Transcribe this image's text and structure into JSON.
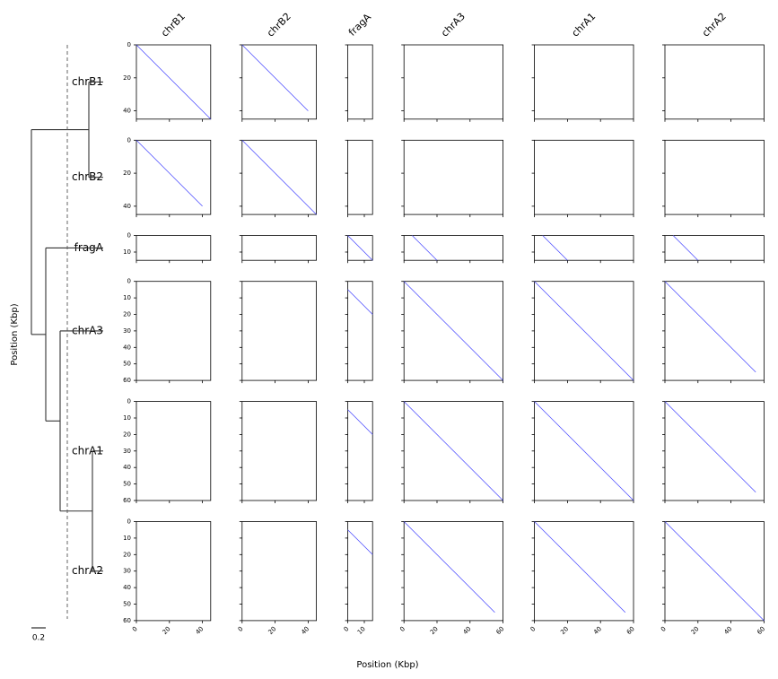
{
  "chart_data": {
    "type": "dotplot",
    "xlabel": "Position (Kbp)",
    "ylabel": "Position (Kbp)",
    "color": "#4444ff",
    "sequences": [
      {
        "name": "chrB1",
        "length": 45,
        "xticks": [
          0,
          20,
          40
        ],
        "yticks": [
          0,
          20,
          40
        ]
      },
      {
        "name": "chrB2",
        "length": 45,
        "xticks": [
          0,
          20,
          40
        ],
        "yticks": [
          0,
          20,
          40
        ]
      },
      {
        "name": "fragA",
        "length": 15,
        "xticks": [
          0,
          10
        ],
        "yticks": [
          0,
          10
        ]
      },
      {
        "name": "chrA3",
        "length": 60,
        "xticks": [
          0,
          20,
          40,
          60
        ],
        "yticks": [
          0,
          10,
          20,
          30,
          40,
          50,
          60
        ]
      },
      {
        "name": "chrA1",
        "length": 60,
        "xticks": [
          0,
          20,
          40,
          60
        ],
        "yticks": [
          0,
          10,
          20,
          30,
          40,
          50,
          60
        ]
      },
      {
        "name": "chrA2",
        "length": 60,
        "xticks": [
          0,
          20,
          40,
          60
        ],
        "yticks": [
          0,
          10,
          20,
          30,
          40,
          50,
          60
        ]
      }
    ],
    "dots": [
      [
        [
          {
            "x": [
              0,
              45
            ],
            "y": [
              0,
              45
            ]
          }
        ],
        [
          {
            "x": [
              0,
              40
            ],
            "y": [
              0,
              40
            ]
          }
        ],
        [],
        [],
        [],
        []
      ],
      [
        [
          {
            "x": [
              0,
              40
            ],
            "y": [
              0,
              40
            ]
          }
        ],
        [
          {
            "x": [
              0,
              45
            ],
            "y": [
              0,
              45
            ]
          }
        ],
        [],
        [],
        [],
        []
      ],
      [
        [],
        [],
        [
          {
            "x": [
              0,
              15
            ],
            "y": [
              0,
              15
            ]
          }
        ],
        [
          {
            "x": [
              5,
              20
            ],
            "y": [
              0,
              15
            ]
          }
        ],
        [
          {
            "x": [
              5,
              20
            ],
            "y": [
              0,
              15
            ]
          }
        ],
        [
          {
            "x": [
              5,
              20
            ],
            "y": [
              0,
              15
            ]
          }
        ]
      ],
      [
        [],
        [],
        [
          {
            "x": [
              0,
              15
            ],
            "y": [
              5,
              20
            ]
          }
        ],
        [
          {
            "x": [
              0,
              60
            ],
            "y": [
              0,
              60
            ]
          }
        ],
        [
          {
            "x": [
              0,
              60
            ],
            "y": [
              0,
              60
            ]
          }
        ],
        [
          {
            "x": [
              0,
              55
            ],
            "y": [
              0,
              55
            ]
          }
        ]
      ],
      [
        [],
        [],
        [
          {
            "x": [
              0,
              15
            ],
            "y": [
              5,
              20
            ]
          }
        ],
        [
          {
            "x": [
              0,
              60
            ],
            "y": [
              0,
              60
            ]
          }
        ],
        [
          {
            "x": [
              0,
              60
            ],
            "y": [
              0,
              60
            ]
          }
        ],
        [
          {
            "x": [
              0,
              55
            ],
            "y": [
              0,
              55
            ]
          }
        ]
      ],
      [
        [],
        [],
        [
          {
            "x": [
              0,
              15
            ],
            "y": [
              5,
              20
            ]
          }
        ],
        [
          {
            "x": [
              0,
              55
            ],
            "y": [
              0,
              55
            ]
          }
        ],
        [
          {
            "x": [
              0,
              55
            ],
            "y": [
              0,
              55
            ]
          }
        ],
        [
          {
            "x": [
              0,
              60
            ],
            "y": [
              0,
              60
            ]
          }
        ]
      ]
    ],
    "tree": {
      "merges": [
        [
          0,
          1,
          0.2
        ],
        [
          4,
          5,
          0.15
        ],
        [
          3,
          7,
          0.6
        ],
        [
          2,
          8,
          0.8
        ],
        [
          6,
          9,
          1.0
        ]
      ],
      "threshold": 0.5,
      "scale_bar": 0.2
    }
  }
}
